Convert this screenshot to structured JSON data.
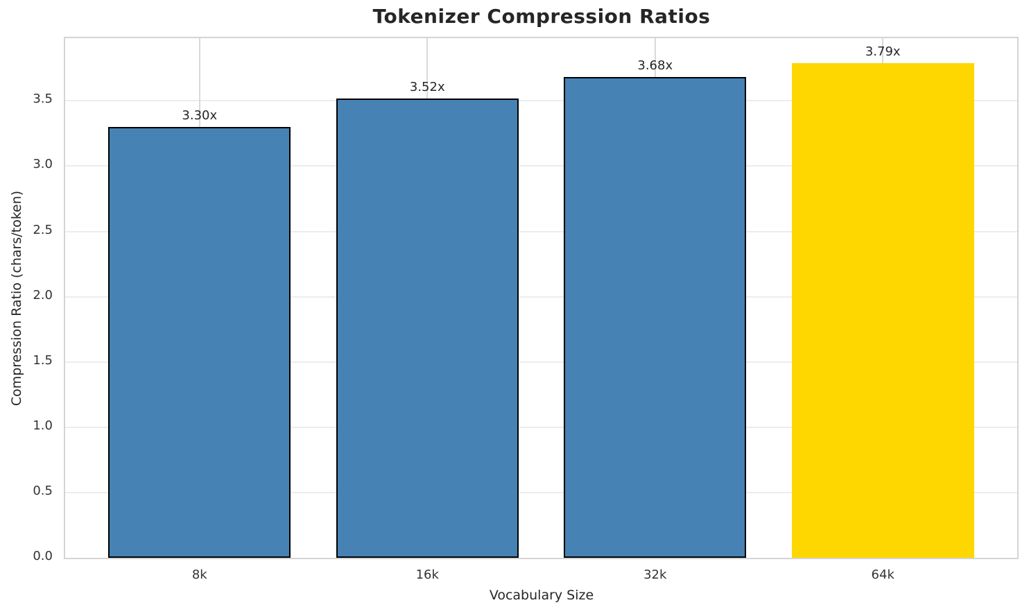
{
  "chart_data": {
    "type": "bar",
    "title": "Tokenizer Compression Ratios",
    "xlabel": "Vocabulary Size",
    "ylabel": "Compression Ratio (chars/token)",
    "categories": [
      "8k",
      "16k",
      "32k",
      "64k"
    ],
    "values": [
      3.3,
      3.52,
      3.68,
      3.79
    ],
    "bar_labels": [
      "3.30x",
      "3.52x",
      "3.68x",
      "3.79x"
    ],
    "ylim": [
      0,
      3.98
    ],
    "yticks": [
      0.0,
      0.5,
      1.0,
      1.5,
      2.0,
      2.5,
      3.0,
      3.5
    ],
    "ytick_labels": [
      "0.0",
      "0.5",
      "1.0",
      "1.5",
      "2.0",
      "2.5",
      "3.0",
      "3.5"
    ],
    "grid": "both",
    "legend": "none",
    "highlight_index": 3,
    "colors": {
      "bar": "#4682B4",
      "highlight_bar": "#FFD700",
      "bar_edge": "#000000",
      "grid_h": "#ececec",
      "grid_v": "#d9d9d9",
      "spine": "#d4d4d4",
      "text": "#262626"
    }
  }
}
